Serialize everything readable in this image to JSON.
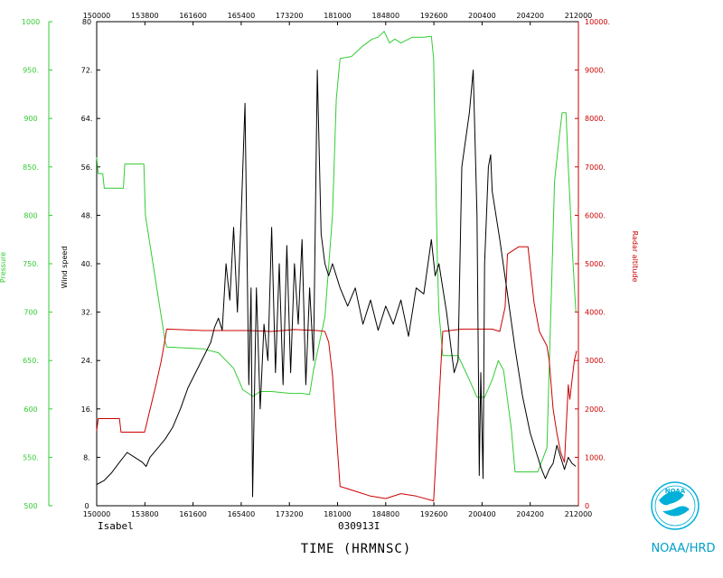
{
  "chart_data": {
    "type": "line",
    "info": {
      "storm": "Isabel",
      "flight_id": "030913I"
    },
    "xlabel": "TIME (HRMNSC)",
    "x_ticks": [
      "150000",
      "153800",
      "161600",
      "165400",
      "173200",
      "181000",
      "184800",
      "192600",
      "200400",
      "204200",
      "212000"
    ],
    "x_tick_values_hours": [
      15.0,
      15.6333,
      16.2667,
      16.9,
      17.5333,
      18.1667,
      18.8,
      19.4333,
      20.0667,
      20.7,
      21.3333
    ],
    "xlim_hours": [
      15.0,
      21.3333
    ],
    "axes": {
      "wind": {
        "label": "Wind speed",
        "ylim": [
          0,
          80
        ],
        "ticks": [
          "0",
          "8.",
          "16.",
          "24.",
          "32.",
          "40.",
          "48.",
          "56.",
          "64.",
          "72.",
          "80"
        ],
        "color": "#000000"
      },
      "pressure": {
        "label": "Pressure",
        "ylim": [
          500,
          1000
        ],
        "ticks": [
          "500",
          "550.",
          "600",
          "650.",
          "700",
          "750.",
          "800",
          "850.",
          "900",
          "950.",
          "1000"
        ],
        "color": "#33cc33"
      },
      "radar": {
        "label": "Radar altitude",
        "ylim": [
          0,
          10000
        ],
        "ticks": [
          "0",
          "1000.",
          "2000.",
          "3000.",
          "4000.",
          "5000.",
          "6000.",
          "7000.",
          "8000.",
          "9000.",
          "10000."
        ],
        "color": "#cc0000"
      }
    },
    "series": [
      {
        "name": "Pressure",
        "axis": "pressure",
        "color": "#33cc33",
        "points": [
          [
            15.0,
            860
          ],
          [
            15.02,
            843
          ],
          [
            15.08,
            843
          ],
          [
            15.1,
            828
          ],
          [
            15.35,
            828
          ],
          [
            15.37,
            853
          ],
          [
            15.62,
            853
          ],
          [
            15.64,
            800
          ],
          [
            15.9,
            670
          ],
          [
            15.92,
            664
          ],
          [
            16.4,
            662
          ],
          [
            16.6,
            658
          ],
          [
            16.8,
            642
          ],
          [
            16.92,
            620
          ],
          [
            17.05,
            613
          ],
          [
            17.15,
            618
          ],
          [
            17.3,
            618
          ],
          [
            17.55,
            616
          ],
          [
            17.7,
            616
          ],
          [
            17.8,
            615
          ],
          [
            17.85,
            640
          ],
          [
            18.0,
            695
          ],
          [
            18.1,
            800
          ],
          [
            18.15,
            920
          ],
          [
            18.2,
            962
          ],
          [
            18.35,
            964
          ],
          [
            18.5,
            975
          ],
          [
            18.62,
            982
          ],
          [
            18.7,
            984
          ],
          [
            18.78,
            990
          ],
          [
            18.85,
            978
          ],
          [
            18.92,
            982
          ],
          [
            19.0,
            978
          ],
          [
            19.15,
            984
          ],
          [
            19.3,
            984
          ],
          [
            19.4,
            985
          ],
          [
            19.43,
            962
          ],
          [
            19.48,
            750
          ],
          [
            19.5,
            700
          ],
          [
            19.55,
            655
          ],
          [
            19.75,
            655
          ],
          [
            19.9,
            630
          ],
          [
            20.0,
            612
          ],
          [
            20.1,
            612
          ],
          [
            20.2,
            630
          ],
          [
            20.28,
            650
          ],
          [
            20.35,
            640
          ],
          [
            20.45,
            580
          ],
          [
            20.5,
            535
          ],
          [
            20.65,
            535
          ],
          [
            20.8,
            535
          ],
          [
            20.92,
            560
          ],
          [
            21.02,
            835
          ],
          [
            21.08,
            880
          ],
          [
            21.12,
            906
          ],
          [
            21.17,
            906
          ],
          [
            21.2,
            850
          ],
          [
            21.26,
            755
          ],
          [
            21.3,
            700
          ]
        ]
      },
      {
        "name": "Radar altitude",
        "axis": "radar",
        "color": "#cc0000",
        "points": [
          [
            15.0,
            1550
          ],
          [
            15.02,
            1800
          ],
          [
            15.3,
            1800
          ],
          [
            15.32,
            1520
          ],
          [
            15.63,
            1520
          ],
          [
            15.78,
            2500
          ],
          [
            15.85,
            3000
          ],
          [
            15.9,
            3450
          ],
          [
            15.92,
            3650
          ],
          [
            16.4,
            3620
          ],
          [
            16.8,
            3620
          ],
          [
            17.0,
            3620
          ],
          [
            17.3,
            3600
          ],
          [
            17.6,
            3640
          ],
          [
            17.9,
            3620
          ],
          [
            18.0,
            3600
          ],
          [
            18.05,
            3380
          ],
          [
            18.1,
            2700
          ],
          [
            18.15,
            1500
          ],
          [
            18.2,
            400
          ],
          [
            18.4,
            300
          ],
          [
            18.6,
            200
          ],
          [
            18.8,
            150
          ],
          [
            19.0,
            250
          ],
          [
            19.2,
            200
          ],
          [
            19.43,
            100
          ],
          [
            19.55,
            3600
          ],
          [
            19.8,
            3650
          ],
          [
            20.0,
            3650
          ],
          [
            20.2,
            3650
          ],
          [
            20.3,
            3600
          ],
          [
            20.37,
            4100
          ],
          [
            20.4,
            5200
          ],
          [
            20.5,
            5300
          ],
          [
            20.55,
            5350
          ],
          [
            20.67,
            5350
          ],
          [
            20.75,
            4200
          ],
          [
            20.82,
            3600
          ],
          [
            20.92,
            3300
          ],
          [
            20.95,
            3000
          ],
          [
            21.0,
            2000
          ],
          [
            21.05,
            1500
          ],
          [
            21.1,
            1100
          ],
          [
            21.15,
            900
          ],
          [
            21.2,
            2500
          ],
          [
            21.22,
            2200
          ],
          [
            21.28,
            3000
          ],
          [
            21.31,
            3200
          ]
        ]
      },
      {
        "name": "Wind speed",
        "axis": "wind",
        "color": "#000000",
        "points": [
          [
            15.0,
            3.5
          ],
          [
            15.1,
            4.2
          ],
          [
            15.2,
            5.5
          ],
          [
            15.3,
            7.2
          ],
          [
            15.4,
            8.8
          ],
          [
            15.5,
            8.0
          ],
          [
            15.6,
            7.2
          ],
          [
            15.65,
            6.5
          ],
          [
            15.7,
            8.0
          ],
          [
            15.8,
            9.5
          ],
          [
            15.9,
            11.0
          ],
          [
            16.0,
            13.0
          ],
          [
            16.1,
            16.0
          ],
          [
            16.2,
            19.5
          ],
          [
            16.3,
            22.0
          ],
          [
            16.4,
            24.5
          ],
          [
            16.5,
            27.0
          ],
          [
            16.55,
            29.5
          ],
          [
            16.6,
            31.0
          ],
          [
            16.65,
            29.0
          ],
          [
            16.7,
            40.0
          ],
          [
            16.75,
            34.0
          ],
          [
            16.8,
            46.0
          ],
          [
            16.85,
            32.0
          ],
          [
            16.9,
            48.0
          ],
          [
            16.95,
            66.5
          ],
          [
            17.0,
            20.0
          ],
          [
            17.03,
            36.0
          ],
          [
            17.05,
            1.5
          ],
          [
            17.1,
            36.0
          ],
          [
            17.15,
            16.0
          ],
          [
            17.2,
            30.0
          ],
          [
            17.25,
            24.0
          ],
          [
            17.3,
            46.0
          ],
          [
            17.35,
            22.0
          ],
          [
            17.4,
            40.0
          ],
          [
            17.45,
            20.0
          ],
          [
            17.5,
            43.0
          ],
          [
            17.55,
            22.0
          ],
          [
            17.6,
            40.0
          ],
          [
            17.65,
            30.0
          ],
          [
            17.7,
            44.0
          ],
          [
            17.75,
            20.0
          ],
          [
            17.8,
            36.0
          ],
          [
            17.85,
            24.0
          ],
          [
            17.9,
            72.0
          ],
          [
            17.95,
            45.0
          ],
          [
            18.0,
            40.0
          ],
          [
            18.05,
            38.0
          ],
          [
            18.1,
            40.0
          ],
          [
            18.2,
            36.0
          ],
          [
            18.3,
            33.0
          ],
          [
            18.4,
            36.0
          ],
          [
            18.5,
            30.0
          ],
          [
            18.6,
            34.0
          ],
          [
            18.7,
            29.0
          ],
          [
            18.8,
            33.0
          ],
          [
            18.9,
            30.0
          ],
          [
            19.0,
            34.0
          ],
          [
            19.1,
            28.0
          ],
          [
            19.2,
            36.0
          ],
          [
            19.3,
            35.0
          ],
          [
            19.4,
            44.0
          ],
          [
            19.45,
            38.0
          ],
          [
            19.5,
            40.0
          ],
          [
            19.6,
            32.0
          ],
          [
            19.7,
            22.0
          ],
          [
            19.75,
            24.0
          ],
          [
            19.8,
            56.0
          ],
          [
            19.9,
            65.0
          ],
          [
            19.95,
            72.0
          ],
          [
            20.0,
            48.0
          ],
          [
            20.02,
            20.0
          ],
          [
            20.03,
            5.0
          ],
          [
            20.05,
            22.0
          ],
          [
            20.08,
            4.5
          ],
          [
            20.1,
            40.0
          ],
          [
            20.15,
            56.0
          ],
          [
            20.18,
            58.0
          ],
          [
            20.2,
            52.0
          ],
          [
            20.3,
            44.0
          ],
          [
            20.4,
            35.0
          ],
          [
            20.5,
            26.0
          ],
          [
            20.6,
            18.0
          ],
          [
            20.7,
            12.0
          ],
          [
            20.8,
            8.0
          ],
          [
            20.85,
            6.0
          ],
          [
            20.9,
            4.5
          ],
          [
            20.95,
            6.0
          ],
          [
            21.0,
            7.0
          ],
          [
            21.05,
            10.0
          ],
          [
            21.1,
            8.0
          ],
          [
            21.15,
            6.0
          ],
          [
            21.2,
            8.0
          ],
          [
            21.25,
            7.0
          ],
          [
            21.3,
            6.5
          ]
        ]
      }
    ]
  },
  "credit": "NOAA/HRD",
  "logo_text": "NOAA"
}
